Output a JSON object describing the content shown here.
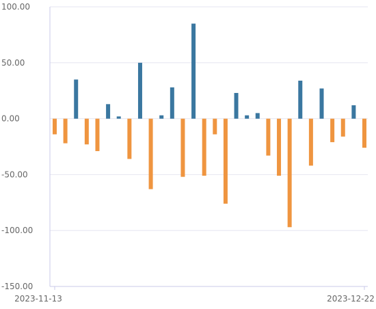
{
  "chart_data": {
    "type": "bar",
    "x_first_label": "2023-11-13",
    "x_last_label": "2023-12-22",
    "ylim": [
      -150,
      100
    ],
    "yticks": [
      {
        "value": 100,
        "label": "100.00"
      },
      {
        "value": 50,
        "label": "50.00"
      },
      {
        "value": 0,
        "label": "0.00"
      },
      {
        "value": -50,
        "label": "-50.00"
      },
      {
        "value": -100,
        "label": "-100.00"
      },
      {
        "value": -150,
        "label": "-150.00"
      }
    ],
    "grid": true,
    "legend": "none",
    "colors": {
      "positive": "#3a77a0",
      "negative": "#ef9540",
      "grid": "#e6e6f0",
      "axis": "#c9c9e8"
    },
    "values": [
      -14,
      -22,
      35,
      -23,
      -29,
      13,
      2,
      -36,
      50,
      -63,
      3,
      28,
      -52,
      85,
      -51,
      -14,
      -76,
      23,
      3,
      5,
      -33,
      -51,
      -97,
      34,
      -42,
      27,
      -21,
      -16,
      12,
      -26
    ]
  }
}
